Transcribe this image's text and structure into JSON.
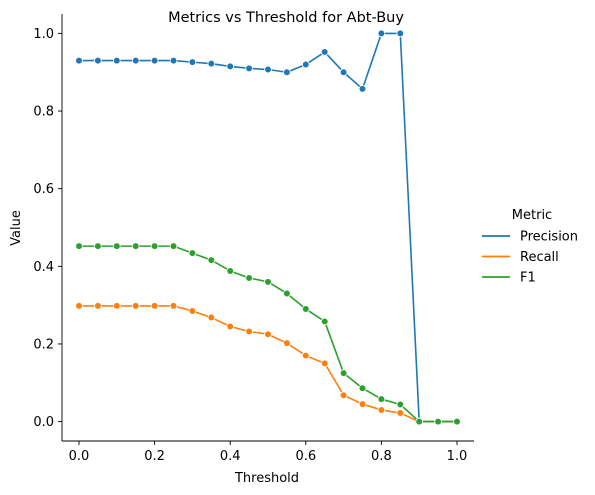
{
  "chart_data": {
    "type": "line",
    "title": "Metrics vs Threshold for Abt-Buy",
    "xlabel": "Threshold",
    "ylabel": "Value",
    "xlim": [
      -0.045,
      1.045
    ],
    "ylim": [
      -0.05,
      1.05
    ],
    "x_ticks": [
      0.0,
      0.2,
      0.4,
      0.6,
      0.8,
      1.0
    ],
    "x_tick_labels": [
      "0.0",
      "0.2",
      "0.4",
      "0.6",
      "0.8",
      "1.0"
    ],
    "y_ticks": [
      0.0,
      0.2,
      0.4,
      0.6,
      0.8,
      1.0
    ],
    "y_tick_labels": [
      "0.0",
      "0.2",
      "0.4",
      "0.6",
      "0.8",
      "1.0"
    ],
    "grid": false,
    "legend": {
      "title": "Metric",
      "placement": "right-outside"
    },
    "x": [
      0.0,
      0.05,
      0.1,
      0.15,
      0.2,
      0.25,
      0.3,
      0.35,
      0.4,
      0.45,
      0.5,
      0.55,
      0.6,
      0.65,
      0.7,
      0.75,
      0.8,
      0.85,
      0.9,
      0.95,
      1.0
    ],
    "series": [
      {
        "name": "Precision",
        "color": "#1f77b4",
        "values": [
          0.93,
          0.93,
          0.93,
          0.93,
          0.93,
          0.93,
          0.926,
          0.922,
          0.915,
          0.91,
          0.907,
          0.9,
          0.92,
          0.952,
          0.9,
          0.857,
          1.0,
          1.0,
          0.0,
          0.0,
          0.0
        ]
      },
      {
        "name": "Recall",
        "color": "#ff7f0e",
        "values": [
          0.298,
          0.298,
          0.298,
          0.298,
          0.298,
          0.298,
          0.285,
          0.268,
          0.245,
          0.232,
          0.225,
          0.202,
          0.17,
          0.15,
          0.068,
          0.045,
          0.03,
          0.022,
          0.0,
          0.0,
          0.0
        ]
      },
      {
        "name": "F1",
        "color": "#2ca02c",
        "values": [
          0.452,
          0.452,
          0.452,
          0.452,
          0.452,
          0.452,
          0.434,
          0.416,
          0.388,
          0.37,
          0.36,
          0.33,
          0.29,
          0.258,
          0.125,
          0.086,
          0.058,
          0.044,
          0.0,
          0.0,
          0.0
        ]
      }
    ]
  }
}
